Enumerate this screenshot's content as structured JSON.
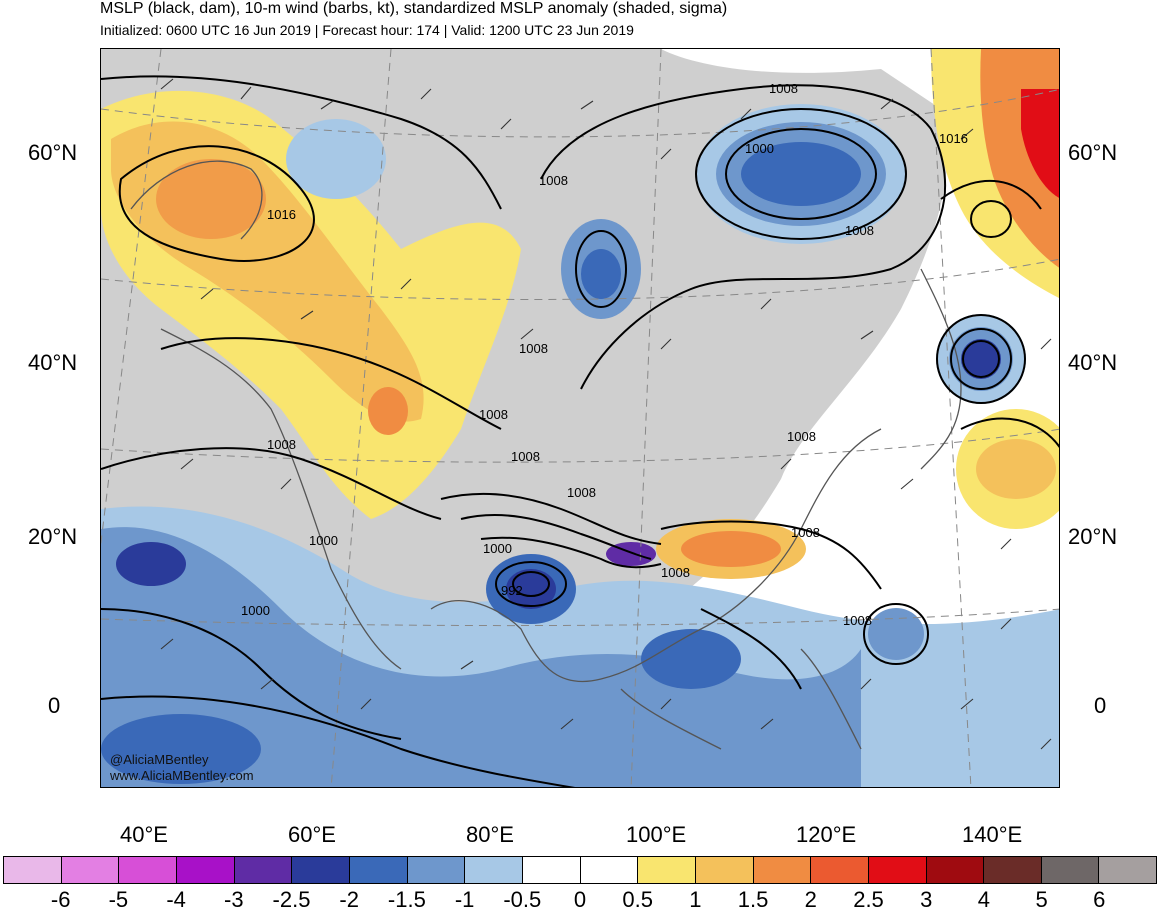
{
  "title": "MSLP (black, dam), 10-m wind (barbs, kt), standardized MSLP anomaly (shaded, sigma)",
  "subtitle": "Initialized: 0600 UTC 16 Jun 2019 | Forecast hour: 174 | Valid: 1200 UTC 23 Jun 2019",
  "lat_labels": [
    "60°N",
    "40°N",
    "20°N",
    "0"
  ],
  "lon_labels": [
    "40°E",
    "60°E",
    "80°E",
    "100°E",
    "120°E",
    "140°E"
  ],
  "colorbar": {
    "labels": [
      "-6",
      "-5",
      "-4",
      "-3",
      "-2.5",
      "-2",
      "-1.5",
      "-1",
      "-0.5",
      "0",
      "0.5",
      "1",
      "1.5",
      "2",
      "2.5",
      "3",
      "4",
      "5",
      "6"
    ],
    "colors": [
      "#e9b8e9",
      "#e37fe3",
      "#d74fd7",
      "#a811c8",
      "#5f2ca5",
      "#2a3b9a",
      "#3a69b8",
      "#6e97cc",
      "#a7c8e6",
      "#ffffff",
      "#ffffff",
      "#f9e56f",
      "#f4c15b",
      "#f08c42",
      "#eb5a30",
      "#e10d16",
      "#9f0b10",
      "#6a2c28",
      "#6e6767",
      "#a59f9f"
    ]
  },
  "contour_labels": [
    "1008",
    "1000",
    "1016",
    "1008",
    "1016",
    "1008",
    "1008",
    "1008",
    "1008",
    "1008",
    "1000",
    "1000",
    "992",
    "1008",
    "1008",
    "1008",
    "1008",
    "1000",
    "1008"
  ],
  "credits": [
    "@AliciaMBentley",
    "www.AliciaMBentley.com"
  ]
}
